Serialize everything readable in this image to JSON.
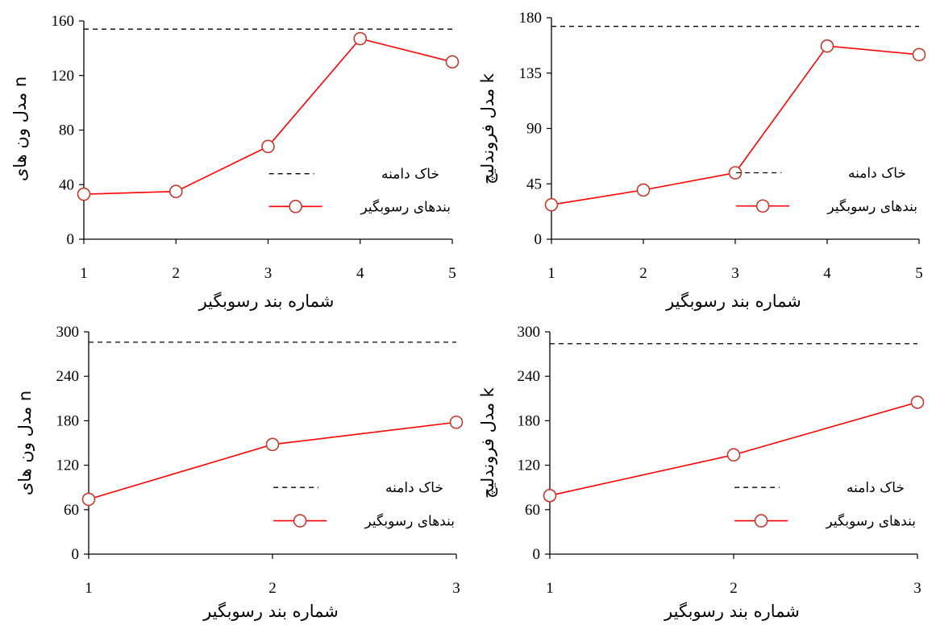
{
  "chart_data": [
    {
      "type": "line",
      "x": [
        1,
        2,
        3,
        4,
        5
      ],
      "xlabel": "شماره بند رسوبگیر",
      "ylabel": "n مدل ون های",
      "ylim": [
        0,
        160
      ],
      "yticks": [
        0,
        40,
        80,
        120,
        160
      ],
      "series": [
        {
          "name": "بندهای رسوبگیر",
          "values": [
            33,
            35,
            68,
            147,
            130
          ],
          "color": "#ff0000"
        },
        {
          "name": "خاک دامنه",
          "values": [
            154,
            154,
            154,
            154,
            154
          ],
          "color": "#000000",
          "style": "dashed"
        }
      ],
      "grid": false,
      "legend": "center-right"
    },
    {
      "type": "line",
      "x": [
        1,
        2,
        3,
        4,
        5
      ],
      "xlabel": "شماره بند رسوبگیر",
      "ylabel": "k مدل فروندليچ",
      "ylim": [
        0,
        180
      ],
      "yticks": [
        0,
        45,
        90,
        135,
        180
      ],
      "series": [
        {
          "name": "بندهای رسوبگیر",
          "values": [
            28,
            40,
            54,
            157,
            150
          ],
          "color": "#ff0000"
        },
        {
          "name": "خاک دامنه",
          "values": [
            173,
            173,
            173,
            173,
            173
          ],
          "color": "#000000",
          "style": "dashed"
        }
      ],
      "grid": false,
      "legend": "center-right"
    },
    {
      "type": "line",
      "x": [
        1,
        2,
        3
      ],
      "xlabel": "شماره بند رسوبگیر",
      "ylabel": "n مدل ون های",
      "ylim": [
        0,
        300
      ],
      "yticks": [
        0,
        60,
        120,
        180,
        240,
        300
      ],
      "series": [
        {
          "name": "بندهای رسوبگیر",
          "values": [
            74,
            148,
            178
          ],
          "color": "#ff0000"
        },
        {
          "name": "خاک دامنه",
          "values": [
            286,
            286,
            286
          ],
          "color": "#000000",
          "style": "dashed"
        }
      ],
      "grid": false,
      "legend": "center-right"
    },
    {
      "type": "line",
      "x": [
        1,
        2,
        3
      ],
      "xlabel": "شماره بند رسوبگیر",
      "ylabel": "k مدل فروندليچ",
      "ylim": [
        0,
        300
      ],
      "yticks": [
        0,
        60,
        120,
        180,
        240,
        300
      ],
      "series": [
        {
          "name": "بندهای رسوبگیر",
          "values": [
            79,
            134,
            205
          ],
          "color": "#ff0000"
        },
        {
          "name": "خاک دامنه",
          "values": [
            284,
            284,
            284
          ],
          "color": "#000000",
          "style": "dashed"
        }
      ],
      "grid": false,
      "legend": "center-right"
    }
  ]
}
